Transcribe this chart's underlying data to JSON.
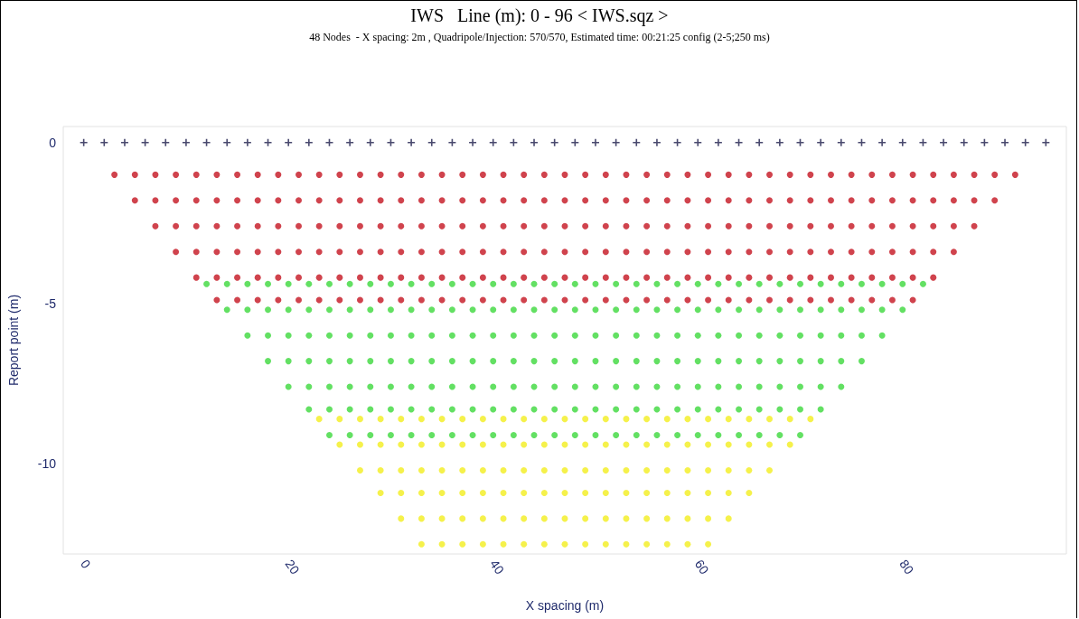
{
  "chart_data": {
    "type": "scatter",
    "title": "IWS   Line (m): 0 - 96 < IWS.sqz >",
    "subtitle": "48 Nodes  - X spacing: 2m , Quadripole/Injection: 570/570, Estimated time: 00:21:25 config (2-5;250 ms)",
    "xlabel": "X spacing (m)",
    "ylabel": "Report point (m)",
    "xlim": [
      -2,
      96
    ],
    "xticks": [
      0,
      20,
      40,
      60,
      80
    ],
    "ylim": [
      -12.8,
      0.5
    ],
    "yticks": [
      0,
      -5,
      -10
    ],
    "grid": false,
    "series": [
      {
        "color": "#1c1c4a",
        "marker": "cross",
        "x": [
          0,
          2,
          4,
          6,
          8,
          10,
          12,
          14,
          16,
          18,
          20,
          22,
          24,
          26,
          28,
          30,
          32,
          34,
          36,
          38,
          40,
          42,
          44,
          46,
          48,
          50,
          52,
          54,
          56,
          58,
          60,
          62,
          64,
          66,
          68,
          70,
          72,
          74,
          76,
          78,
          80,
          82,
          84,
          86,
          88,
          90,
          92,
          94
        ],
        "values": [
          0,
          0,
          0,
          0,
          0,
          0,
          0,
          0,
          0,
          0,
          0,
          0,
          0,
          0,
          0,
          0,
          0,
          0,
          0,
          0,
          0,
          0,
          0,
          0,
          0,
          0,
          0,
          0,
          0,
          0,
          0,
          0,
          0,
          0,
          0,
          0,
          0,
          0,
          0,
          0,
          0,
          0,
          0,
          0,
          0,
          0,
          0,
          0
        ]
      },
      {
        "color": "#c41420",
        "marker": "circle",
        "x": [
          3,
          5,
          7,
          9,
          11,
          13,
          15,
          17,
          19,
          21,
          23,
          25,
          27,
          29,
          31,
          33,
          35,
          37,
          39,
          41,
          43,
          45,
          47,
          49,
          51,
          53,
          55,
          57,
          59,
          61,
          63,
          65,
          67,
          69,
          71,
          73,
          75,
          77,
          79,
          81,
          83,
          85,
          87,
          89,
          91
        ],
        "values": [
          -1.0,
          -1.0,
          -1.0,
          -1.0,
          -1.0,
          -1.0,
          -1.0,
          -1.0,
          -1.0,
          -1.0,
          -1.0,
          -1.0,
          -1.0,
          -1.0,
          -1.0,
          -1.0,
          -1.0,
          -1.0,
          -1.0,
          -1.0,
          -1.0,
          -1.0,
          -1.0,
          -1.0,
          -1.0,
          -1.0,
          -1.0,
          -1.0,
          -1.0,
          -1.0,
          -1.0,
          -1.0,
          -1.0,
          -1.0,
          -1.0,
          -1.0,
          -1.0,
          -1.0,
          -1.0,
          -1.0,
          -1.0,
          -1.0,
          -1.0,
          -1.0,
          -1.0
        ]
      },
      {
        "color": "#c41420",
        "marker": "circle",
        "x": [
          5,
          7,
          9,
          11,
          13,
          15,
          17,
          19,
          21,
          23,
          25,
          27,
          29,
          31,
          33,
          35,
          37,
          39,
          41,
          43,
          45,
          47,
          49,
          51,
          53,
          55,
          57,
          59,
          61,
          63,
          65,
          67,
          69,
          71,
          73,
          75,
          77,
          79,
          81,
          83,
          85,
          87,
          89
        ],
        "values": [
          -1.8,
          -1.8,
          -1.8,
          -1.8,
          -1.8,
          -1.8,
          -1.8,
          -1.8,
          -1.8,
          -1.8,
          -1.8,
          -1.8,
          -1.8,
          -1.8,
          -1.8,
          -1.8,
          -1.8,
          -1.8,
          -1.8,
          -1.8,
          -1.8,
          -1.8,
          -1.8,
          -1.8,
          -1.8,
          -1.8,
          -1.8,
          -1.8,
          -1.8,
          -1.8,
          -1.8,
          -1.8,
          -1.8,
          -1.8,
          -1.8,
          -1.8,
          -1.8,
          -1.8,
          -1.8,
          -1.8,
          -1.8,
          -1.8,
          -1.8
        ]
      },
      {
        "color": "#c41420",
        "marker": "circle",
        "x": [
          7,
          9,
          11,
          13,
          15,
          17,
          19,
          21,
          23,
          25,
          27,
          29,
          31,
          33,
          35,
          37,
          39,
          41,
          43,
          45,
          47,
          49,
          51,
          53,
          55,
          57,
          59,
          61,
          63,
          65,
          67,
          69,
          71,
          73,
          75,
          77,
          79,
          81,
          83,
          85,
          87
        ],
        "values": [
          -2.6,
          -2.6,
          -2.6,
          -2.6,
          -2.6,
          -2.6,
          -2.6,
          -2.6,
          -2.6,
          -2.6,
          -2.6,
          -2.6,
          -2.6,
          -2.6,
          -2.6,
          -2.6,
          -2.6,
          -2.6,
          -2.6,
          -2.6,
          -2.6,
          -2.6,
          -2.6,
          -2.6,
          -2.6,
          -2.6,
          -2.6,
          -2.6,
          -2.6,
          -2.6,
          -2.6,
          -2.6,
          -2.6,
          -2.6,
          -2.6,
          -2.6,
          -2.6,
          -2.6,
          -2.6,
          -2.6,
          -2.6
        ]
      },
      {
        "color": "#c41420",
        "marker": "circle",
        "x": [
          9,
          11,
          13,
          15,
          17,
          19,
          21,
          23,
          25,
          27,
          29,
          31,
          33,
          35,
          37,
          39,
          41,
          43,
          45,
          47,
          49,
          51,
          53,
          55,
          57,
          59,
          61,
          63,
          65,
          67,
          69,
          71,
          73,
          75,
          77,
          79,
          81,
          83,
          85
        ],
        "values": [
          -3.4,
          -3.4,
          -3.4,
          -3.4,
          -3.4,
          -3.4,
          -3.4,
          -3.4,
          -3.4,
          -3.4,
          -3.4,
          -3.4,
          -3.4,
          -3.4,
          -3.4,
          -3.4,
          -3.4,
          -3.4,
          -3.4,
          -3.4,
          -3.4,
          -3.4,
          -3.4,
          -3.4,
          -3.4,
          -3.4,
          -3.4,
          -3.4,
          -3.4,
          -3.4,
          -3.4,
          -3.4,
          -3.4,
          -3.4,
          -3.4,
          -3.4,
          -3.4,
          -3.4,
          -3.4
        ]
      },
      {
        "color": "#c41420",
        "marker": "circle",
        "x": [
          11,
          13,
          15,
          17,
          19,
          21,
          23,
          25,
          27,
          29,
          31,
          33,
          35,
          37,
          39,
          41,
          43,
          45,
          47,
          49,
          51,
          53,
          55,
          57,
          59,
          61,
          63,
          65,
          67,
          69,
          71,
          73,
          75,
          77,
          79,
          81,
          83
        ],
        "values": [
          -4.2,
          -4.2,
          -4.2,
          -4.2,
          -4.2,
          -4.2,
          -4.2,
          -4.2,
          -4.2,
          -4.2,
          -4.2,
          -4.2,
          -4.2,
          -4.2,
          -4.2,
          -4.2,
          -4.2,
          -4.2,
          -4.2,
          -4.2,
          -4.2,
          -4.2,
          -4.2,
          -4.2,
          -4.2,
          -4.2,
          -4.2,
          -4.2,
          -4.2,
          -4.2,
          -4.2,
          -4.2,
          -4.2,
          -4.2,
          -4.2,
          -4.2,
          -4.2
        ]
      },
      {
        "color": "#c41420",
        "marker": "circle",
        "x": [
          13,
          15,
          17,
          19,
          21,
          23,
          25,
          27,
          29,
          31,
          33,
          35,
          37,
          39,
          41,
          43,
          45,
          47,
          49,
          51,
          53,
          55,
          57,
          59,
          61,
          63,
          65,
          67,
          69,
          71,
          73,
          75,
          77,
          79,
          81
        ],
        "values": [
          -4.9,
          -4.9,
          -4.9,
          -4.9,
          -4.9,
          -4.9,
          -4.9,
          -4.9,
          -4.9,
          -4.9,
          -4.9,
          -4.9,
          -4.9,
          -4.9,
          -4.9,
          -4.9,
          -4.9,
          -4.9,
          -4.9,
          -4.9,
          -4.9,
          -4.9,
          -4.9,
          -4.9,
          -4.9,
          -4.9,
          -4.9,
          -4.9,
          -4.9,
          -4.9,
          -4.9,
          -4.9,
          -4.9,
          -4.9,
          -4.9
        ]
      },
      {
        "color": "#3cd83c",
        "marker": "circle",
        "x": [
          12,
          14,
          16,
          18,
          20,
          22,
          24,
          26,
          28,
          30,
          32,
          34,
          36,
          38,
          40,
          42,
          44,
          46,
          48,
          50,
          52,
          54,
          56,
          58,
          60,
          62,
          64,
          66,
          68,
          70,
          72,
          74,
          76,
          78,
          80,
          82
        ],
        "values": [
          -4.4,
          -4.4,
          -4.4,
          -4.4,
          -4.4,
          -4.4,
          -4.4,
          -4.4,
          -4.4,
          -4.4,
          -4.4,
          -4.4,
          -4.4,
          -4.4,
          -4.4,
          -4.4,
          -4.4,
          -4.4,
          -4.4,
          -4.4,
          -4.4,
          -4.4,
          -4.4,
          -4.4,
          -4.4,
          -4.4,
          -4.4,
          -4.4,
          -4.4,
          -4.4,
          -4.4,
          -4.4,
          -4.4,
          -4.4,
          -4.4,
          -4.4
        ]
      },
      {
        "color": "#3cd83c",
        "marker": "circle",
        "x": [
          14,
          16,
          18,
          20,
          22,
          24,
          26,
          28,
          30,
          32,
          34,
          36,
          38,
          40,
          42,
          44,
          46,
          48,
          50,
          52,
          54,
          56,
          58,
          60,
          62,
          64,
          66,
          68,
          70,
          72,
          74,
          76,
          78,
          80
        ],
        "values": [
          -5.2,
          -5.2,
          -5.2,
          -5.2,
          -5.2,
          -5.2,
          -5.2,
          -5.2,
          -5.2,
          -5.2,
          -5.2,
          -5.2,
          -5.2,
          -5.2,
          -5.2,
          -5.2,
          -5.2,
          -5.2,
          -5.2,
          -5.2,
          -5.2,
          -5.2,
          -5.2,
          -5.2,
          -5.2,
          -5.2,
          -5.2,
          -5.2,
          -5.2,
          -5.2,
          -5.2,
          -5.2,
          -5.2,
          -5.2
        ]
      },
      {
        "color": "#3cd83c",
        "marker": "circle",
        "x": [
          16,
          18,
          20,
          22,
          24,
          26,
          28,
          30,
          32,
          34,
          36,
          38,
          40,
          42,
          44,
          46,
          48,
          50,
          52,
          54,
          56,
          58,
          60,
          62,
          64,
          66,
          68,
          70,
          72,
          74,
          76,
          78
        ],
        "values": [
          -6.0,
          -6.0,
          -6.0,
          -6.0,
          -6.0,
          -6.0,
          -6.0,
          -6.0,
          -6.0,
          -6.0,
          -6.0,
          -6.0,
          -6.0,
          -6.0,
          -6.0,
          -6.0,
          -6.0,
          -6.0,
          -6.0,
          -6.0,
          -6.0,
          -6.0,
          -6.0,
          -6.0,
          -6.0,
          -6.0,
          -6.0,
          -6.0,
          -6.0,
          -6.0,
          -6.0,
          -6.0
        ]
      },
      {
        "color": "#3cd83c",
        "marker": "circle",
        "x": [
          18,
          20,
          22,
          24,
          26,
          28,
          30,
          32,
          34,
          36,
          38,
          40,
          42,
          44,
          46,
          48,
          50,
          52,
          54,
          56,
          58,
          60,
          62,
          64,
          66,
          68,
          70,
          72,
          74,
          76
        ],
        "values": [
          -6.8,
          -6.8,
          -6.8,
          -6.8,
          -6.8,
          -6.8,
          -6.8,
          -6.8,
          -6.8,
          -6.8,
          -6.8,
          -6.8,
          -6.8,
          -6.8,
          -6.8,
          -6.8,
          -6.8,
          -6.8,
          -6.8,
          -6.8,
          -6.8,
          -6.8,
          -6.8,
          -6.8,
          -6.8,
          -6.8,
          -6.8,
          -6.8,
          -6.8,
          -6.8
        ]
      },
      {
        "color": "#3cd83c",
        "marker": "circle",
        "x": [
          20,
          22,
          24,
          26,
          28,
          30,
          32,
          34,
          36,
          38,
          40,
          42,
          44,
          46,
          48,
          50,
          52,
          54,
          56,
          58,
          60,
          62,
          64,
          66,
          68,
          70,
          72,
          74
        ],
        "values": [
          -7.6,
          -7.6,
          -7.6,
          -7.6,
          -7.6,
          -7.6,
          -7.6,
          -7.6,
          -7.6,
          -7.6,
          -7.6,
          -7.6,
          -7.6,
          -7.6,
          -7.6,
          -7.6,
          -7.6,
          -7.6,
          -7.6,
          -7.6,
          -7.6,
          -7.6,
          -7.6,
          -7.6,
          -7.6,
          -7.6,
          -7.6,
          -7.6
        ]
      },
      {
        "color": "#3cd83c",
        "marker": "circle",
        "x": [
          22,
          24,
          26,
          28,
          30,
          32,
          34,
          36,
          38,
          40,
          42,
          44,
          46,
          48,
          50,
          52,
          54,
          56,
          58,
          60,
          62,
          64,
          66,
          68,
          70,
          72
        ],
        "values": [
          -8.3,
          -8.3,
          -8.3,
          -8.3,
          -8.3,
          -8.3,
          -8.3,
          -8.3,
          -8.3,
          -8.3,
          -8.3,
          -8.3,
          -8.3,
          -8.3,
          -8.3,
          -8.3,
          -8.3,
          -8.3,
          -8.3,
          -8.3,
          -8.3,
          -8.3,
          -8.3,
          -8.3,
          -8.3,
          -8.3
        ]
      },
      {
        "color": "#3cd83c",
        "marker": "circle",
        "x": [
          24,
          26,
          28,
          30,
          32,
          34,
          36,
          38,
          40,
          42,
          44,
          46,
          48,
          50,
          52,
          54,
          56,
          58,
          60,
          62,
          64,
          66,
          68,
          70
        ],
        "values": [
          -9.1,
          -9.1,
          -9.1,
          -9.1,
          -9.1,
          -9.1,
          -9.1,
          -9.1,
          -9.1,
          -9.1,
          -9.1,
          -9.1,
          -9.1,
          -9.1,
          -9.1,
          -9.1,
          -9.1,
          -9.1,
          -9.1,
          -9.1,
          -9.1,
          -9.1,
          -9.1,
          -9.1
        ]
      },
      {
        "color": "#f2ee1e",
        "marker": "circle",
        "x": [
          23,
          25,
          27,
          29,
          31,
          33,
          35,
          37,
          39,
          41,
          43,
          45,
          47,
          49,
          51,
          53,
          55,
          57,
          59,
          61,
          63,
          65,
          67,
          69,
          71
        ],
        "values": [
          -8.6,
          -8.6,
          -8.6,
          -8.6,
          -8.6,
          -8.6,
          -8.6,
          -8.6,
          -8.6,
          -8.6,
          -8.6,
          -8.6,
          -8.6,
          -8.6,
          -8.6,
          -8.6,
          -8.6,
          -8.6,
          -8.6,
          -8.6,
          -8.6,
          -8.6,
          -8.6,
          -8.6,
          -8.6
        ]
      },
      {
        "color": "#f2ee1e",
        "marker": "circle",
        "x": [
          25,
          27,
          29,
          31,
          33,
          35,
          37,
          39,
          41,
          43,
          45,
          47,
          49,
          51,
          53,
          55,
          57,
          59,
          61,
          63,
          65,
          67,
          69
        ],
        "values": [
          -9.4,
          -9.4,
          -9.4,
          -9.4,
          -9.4,
          -9.4,
          -9.4,
          -9.4,
          -9.4,
          -9.4,
          -9.4,
          -9.4,
          -9.4,
          -9.4,
          -9.4,
          -9.4,
          -9.4,
          -9.4,
          -9.4,
          -9.4,
          -9.4,
          -9.4,
          -9.4
        ]
      },
      {
        "color": "#f2ee1e",
        "marker": "circle",
        "x": [
          27,
          29,
          31,
          33,
          35,
          37,
          39,
          41,
          43,
          45,
          47,
          49,
          51,
          53,
          55,
          57,
          59,
          61,
          63,
          65,
          67
        ],
        "values": [
          -10.2,
          -10.2,
          -10.2,
          -10.2,
          -10.2,
          -10.2,
          -10.2,
          -10.2,
          -10.2,
          -10.2,
          -10.2,
          -10.2,
          -10.2,
          -10.2,
          -10.2,
          -10.2,
          -10.2,
          -10.2,
          -10.2,
          -10.2,
          -10.2
        ]
      },
      {
        "color": "#f2ee1e",
        "marker": "circle",
        "x": [
          29,
          31,
          33,
          35,
          37,
          39,
          41,
          43,
          45,
          47,
          49,
          51,
          53,
          55,
          57,
          59,
          61,
          63,
          65
        ],
        "values": [
          -10.9,
          -10.9,
          -10.9,
          -10.9,
          -10.9,
          -10.9,
          -10.9,
          -10.9,
          -10.9,
          -10.9,
          -10.9,
          -10.9,
          -10.9,
          -10.9,
          -10.9,
          -10.9,
          -10.9,
          -10.9,
          -10.9
        ]
      },
      {
        "color": "#f2ee1e",
        "marker": "circle",
        "x": [
          31,
          33,
          35,
          37,
          39,
          41,
          43,
          45,
          47,
          49,
          51,
          53,
          55,
          57,
          59,
          61,
          63
        ],
        "values": [
          -11.7,
          -11.7,
          -11.7,
          -11.7,
          -11.7,
          -11.7,
          -11.7,
          -11.7,
          -11.7,
          -11.7,
          -11.7,
          -11.7,
          -11.7,
          -11.7,
          -11.7,
          -11.7,
          -11.7
        ]
      },
      {
        "color": "#f2ee1e",
        "marker": "circle",
        "x": [
          33,
          35,
          37,
          39,
          41,
          43,
          45,
          47,
          49,
          51,
          53,
          55,
          57,
          59,
          61
        ],
        "values": [
          -12.5,
          -12.5,
          -12.5,
          -12.5,
          -12.5,
          -12.5,
          -12.5,
          -12.5,
          -12.5,
          -12.5,
          -12.5,
          -12.5,
          -12.5,
          -12.5,
          -12.5
        ]
      }
    ]
  }
}
